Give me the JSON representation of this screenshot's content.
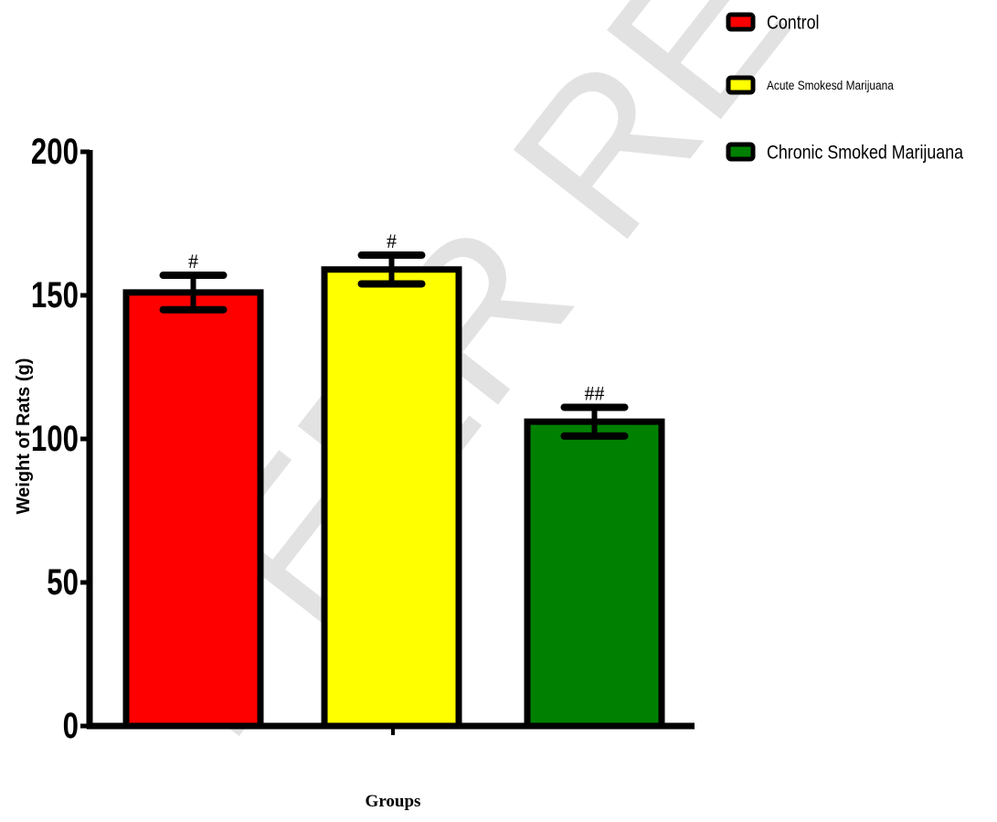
{
  "watermark": "PEER REVIEW",
  "chart_data": {
    "type": "bar",
    "title": "",
    "xlabel": "Groups",
    "ylabel": "Weight of Rats (g)",
    "ylim": [
      0,
      200
    ],
    "yticks": [
      0,
      50,
      100,
      150,
      200
    ],
    "grid": false,
    "legend_position": "top-right",
    "series": [
      {
        "name": "Control",
        "value": 151,
        "error": 6,
        "annotation": "#",
        "color": "#ff0000"
      },
      {
        "name": "Acute Smokesd Marijuana",
        "value": 159,
        "error": 5,
        "annotation": "#",
        "color": "#ffff00"
      },
      {
        "name": "Chronic Smoked Marijuana",
        "value": 106,
        "error": 5,
        "annotation": "##",
        "color": "#008000"
      }
    ]
  }
}
